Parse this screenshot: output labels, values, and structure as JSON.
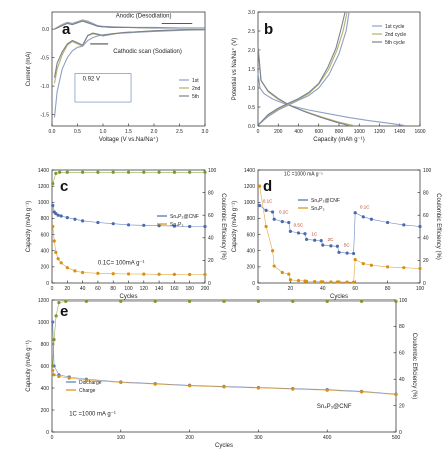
{
  "chart_data": [
    {
      "panel": "a",
      "type": "line",
      "xlabel": "Voltage (V vs.Na/Na⁺)",
      "ylabel": "Current (mA)",
      "xlim": [
        0.0,
        3.0
      ],
      "ylim": [
        -1.7,
        0.3
      ],
      "xticks": [
        "0.0",
        "0.5",
        "1.0",
        "1.5",
        "2.0",
        "2.5",
        "3.0"
      ],
      "yticks": [
        "0.0",
        "-0.5",
        "-1.0",
        "-1.5"
      ],
      "annotations": [
        "Anodic (Desodiation)",
        "Cathodic scan (Sodiation)",
        "0.92 V"
      ],
      "series": [
        {
          "name": "1st",
          "color": "#8f9fc4",
          "x": [
            0.05,
            0.1,
            0.2,
            0.3,
            0.4,
            0.5,
            0.6,
            0.7,
            0.8,
            0.9,
            1.0,
            1.2,
            1.4,
            1.6,
            1.8,
            2.0,
            2.3,
            2.6,
            3.0
          ],
          "y": [
            -1.55,
            -1.1,
            -0.7,
            -0.5,
            -0.38,
            -0.32,
            -0.3,
            -0.2,
            -0.15,
            -0.12,
            -0.1,
            -0.08,
            -0.07,
            -0.06,
            -0.05,
            -0.04,
            -0.03,
            -0.02,
            -0.01
          ]
        },
        {
          "name": "2nd",
          "color": "#b8b06a",
          "x": [
            0.05,
            0.1,
            0.2,
            0.3,
            0.4,
            0.5,
            0.6,
            0.7,
            0.8,
            0.9,
            1.0,
            1.2,
            1.4,
            1.6,
            1.8,
            2.0,
            2.3,
            2.6,
            3.0
          ],
          "y": [
            -0.95,
            -0.7,
            -0.45,
            -0.28,
            -0.22,
            -0.26,
            -0.3,
            -0.12,
            -0.08,
            -0.1,
            -0.12,
            -0.09,
            -0.06,
            -0.05,
            -0.04,
            -0.03,
            -0.02,
            -0.01,
            -0.01
          ]
        },
        {
          "name": "5th",
          "color": "#7a8290",
          "x": [
            0.05,
            0.1,
            0.2,
            0.3,
            0.4,
            0.5,
            0.6,
            0.7,
            0.8,
            0.9,
            1.0,
            1.2,
            1.4,
            1.6,
            1.8,
            2.0,
            2.3,
            2.6,
            3.0
          ],
          "y": [
            -0.85,
            -0.6,
            -0.4,
            -0.26,
            -0.2,
            -0.24,
            -0.28,
            -0.11,
            -0.07,
            -0.09,
            -0.11,
            -0.08,
            -0.06,
            -0.05,
            -0.04,
            -0.03,
            -0.02,
            -0.01,
            -0.01
          ]
        },
        {
          "name": "1st",
          "color": "#8f9fc4",
          "x": [
            3.0,
            2.5,
            2.0,
            1.5,
            1.2,
            1.0,
            0.9,
            0.8,
            0.7,
            0.6,
            0.5,
            0.4,
            0.3,
            0.2,
            0.1,
            0.05
          ],
          "y": [
            0.02,
            0.02,
            0.03,
            0.03,
            0.04,
            0.05,
            0.06,
            0.1,
            0.14,
            0.16,
            0.13,
            0.1,
            0.12,
            0.08,
            0.03,
            0.0
          ]
        },
        {
          "name": "2nd",
          "color": "#b8b06a",
          "x": [
            3.0,
            2.5,
            2.0,
            1.5,
            1.2,
            1.0,
            0.9,
            0.8,
            0.7,
            0.6,
            0.5,
            0.4,
            0.3,
            0.2,
            0.1,
            0.05
          ],
          "y": [
            0.02,
            0.02,
            0.02,
            0.03,
            0.03,
            0.04,
            0.05,
            0.08,
            0.12,
            0.15,
            0.12,
            0.09,
            0.11,
            0.07,
            0.02,
            0.0
          ]
        },
        {
          "name": "5th",
          "color": "#7a8290",
          "x": [
            3.0,
            2.5,
            2.0,
            1.5,
            1.2,
            1.0,
            0.9,
            0.8,
            0.7,
            0.6,
            0.5,
            0.4,
            0.3,
            0.2,
            0.1,
            0.05
          ],
          "y": [
            0.02,
            0.02,
            0.02,
            0.03,
            0.03,
            0.04,
            0.05,
            0.08,
            0.11,
            0.14,
            0.11,
            0.08,
            0.1,
            0.06,
            0.02,
            0.0
          ]
        }
      ]
    },
    {
      "panel": "b",
      "type": "line",
      "xlabel": "Capacity (mAh g⁻¹)",
      "ylabel": "Potential vs Na/Na⁺ (V)",
      "xlim": [
        0,
        1600
      ],
      "ylim": [
        0.0,
        3.0
      ],
      "xticks": [
        "0",
        "200",
        "400",
        "600",
        "800",
        "1000",
        "1200",
        "1400",
        "1600"
      ],
      "yticks": [
        "0.0",
        "0.5",
        "1.0",
        "1.5",
        "2.0",
        "2.5",
        "3.0"
      ],
      "series": [
        {
          "name": "1st cycle",
          "color": "#8f9fc4",
          "x": [
            0,
            20,
            60,
            150,
            300,
            500,
            700,
            900,
            1100,
            1300,
            1450
          ],
          "y": [
            1.4,
            1.0,
            0.85,
            0.7,
            0.55,
            0.42,
            0.32,
            0.22,
            0.14,
            0.07,
            0.01
          ]
        },
        {
          "name": "2nd cycle",
          "color": "#b8b06a",
          "x": [
            0,
            30,
            100,
            200,
            350,
            500,
            650,
            800,
            950
          ],
          "y": [
            2.1,
            1.2,
            0.9,
            0.7,
            0.5,
            0.35,
            0.22,
            0.1,
            0.01
          ]
        },
        {
          "name": "5th cycle",
          "color": "#7a8290",
          "x": [
            0,
            30,
            100,
            200,
            330,
            480,
            620,
            760,
            900
          ],
          "y": [
            2.1,
            1.2,
            0.92,
            0.72,
            0.52,
            0.36,
            0.23,
            0.11,
            0.01
          ]
        },
        {
          "name": "1st cycle",
          "color": "#8f9fc4",
          "x": [
            0,
            100,
            200,
            300,
            400,
            500,
            600,
            700,
            800,
            870,
            900
          ],
          "y": [
            0.02,
            0.25,
            0.42,
            0.55,
            0.68,
            0.8,
            1.0,
            1.35,
            1.9,
            2.5,
            3.0
          ]
        },
        {
          "name": "2nd cycle",
          "color": "#b8b06a",
          "x": [
            0,
            100,
            200,
            300,
            400,
            500,
            600,
            700,
            780,
            840,
            880
          ],
          "y": [
            0.02,
            0.28,
            0.45,
            0.58,
            0.7,
            0.85,
            1.1,
            1.5,
            2.0,
            2.5,
            3.0
          ]
        },
        {
          "name": "5th cycle",
          "color": "#7a8290",
          "x": [
            0,
            100,
            200,
            300,
            400,
            500,
            600,
            690,
            770,
            820,
            860
          ],
          "y": [
            0.02,
            0.3,
            0.47,
            0.6,
            0.72,
            0.88,
            1.12,
            1.55,
            2.05,
            2.55,
            3.0
          ]
        }
      ]
    },
    {
      "panel": "c",
      "type": "scatter",
      "xlabel": "Cycles",
      "ylabel": "Capacity (mAh g⁻¹)",
      "y2label": "Coulombic Efficiency (%)",
      "xlim": [
        0,
        200
      ],
      "ylim": [
        0,
        1400
      ],
      "y2lim": [
        0,
        100
      ],
      "xticks": [
        "0",
        "20",
        "40",
        "60",
        "80",
        "100",
        "120",
        "140",
        "160",
        "180",
        "200"
      ],
      "yticks": [
        "0",
        "200",
        "400",
        "600",
        "800",
        "1000",
        "1200",
        "1400"
      ],
      "y2ticks": [
        "0",
        "20",
        "40",
        "60",
        "80",
        "100"
      ],
      "annotations": [
        "0.1C= 100mA g⁻¹"
      ],
      "series": [
        {
          "name": "Sn₄P₃@CNF",
          "color": "#4a6ab0",
          "x": [
            1,
            3,
            5,
            8,
            12,
            20,
            30,
            40,
            60,
            80,
            100,
            120,
            140,
            160,
            180,
            200
          ],
          "y": [
            960,
            880,
            860,
            840,
            830,
            810,
            790,
            770,
            750,
            735,
            720,
            715,
            710,
            705,
            700,
            700
          ]
        },
        {
          "name": "Sn₄P₃",
          "color": "#d8900e",
          "x": [
            1,
            3,
            5,
            8,
            12,
            20,
            30,
            40,
            60,
            80,
            100,
            120,
            140,
            160,
            180,
            200
          ],
          "y": [
            700,
            520,
            380,
            300,
            250,
            190,
            150,
            130,
            120,
            115,
            112,
            110,
            108,
            107,
            105,
            105
          ]
        },
        {
          "name": "Coulombic Efficiency",
          "axis": "y2",
          "color": "#7a9a2a",
          "x": [
            1,
            5,
            10,
            20,
            40,
            60,
            80,
            100,
            120,
            140,
            160,
            180,
            200
          ],
          "y": [
            88,
            97,
            98,
            98,
            98,
            98,
            98,
            98,
            98,
            98,
            98,
            98,
            98
          ]
        }
      ]
    },
    {
      "panel": "d",
      "type": "scatter",
      "xlabel": "Cycles",
      "ylabel": "Capacity (mAh g⁻¹)",
      "y2label": "Coulombic Efficiency (%)",
      "xlim": [
        0,
        100
      ],
      "ylim": [
        0,
        1400
      ],
      "y2lim": [
        0,
        100
      ],
      "xticks": [
        "0",
        "20",
        "40",
        "60",
        "80",
        "100"
      ],
      "yticks": [
        "0",
        "200",
        "400",
        "600",
        "800",
        "1000",
        "1200",
        "1400"
      ],
      "y2ticks": [
        "0",
        "20",
        "40",
        "60",
        "80",
        "100"
      ],
      "annotations": [
        "1C =1000 mA g⁻¹",
        "0.1C",
        "0.2C",
        "0.5C",
        "1C",
        "2C",
        "5C",
        "0.1C"
      ],
      "series": [
        {
          "name": "Sn₄P₃@CNF",
          "color": "#4a6ab0",
          "x": [
            1,
            5,
            9,
            10,
            15,
            19,
            20,
            25,
            29,
            30,
            35,
            39,
            40,
            45,
            49,
            50,
            55,
            59,
            60,
            65,
            70,
            80,
            90,
            100
          ],
          "y": [
            960,
            900,
            880,
            790,
            760,
            750,
            640,
            620,
            610,
            540,
            530,
            525,
            470,
            460,
            455,
            380,
            370,
            365,
            870,
            820,
            790,
            750,
            720,
            700
          ]
        },
        {
          "name": "Sn₄P₃",
          "color": "#d8900e",
          "x": [
            1,
            5,
            9,
            10,
            15,
            19,
            20,
            25,
            29,
            30,
            35,
            39,
            40,
            45,
            49,
            50,
            55,
            59,
            60,
            65,
            70,
            80,
            90,
            100
          ],
          "y": [
            1200,
            700,
            400,
            210,
            130,
            110,
            40,
            30,
            25,
            20,
            18,
            15,
            14,
            13,
            12,
            12,
            11,
            10,
            290,
            240,
            220,
            200,
            190,
            180
          ]
        }
      ]
    },
    {
      "panel": "e",
      "type": "scatter",
      "xlabel": "Cycles",
      "ylabel": "Capacity (mAh g⁻¹)",
      "y2label": "Coulombic Efficiency (%)",
      "xlim": [
        0,
        500
      ],
      "ylim": [
        0,
        1200
      ],
      "y2lim": [
        0,
        100
      ],
      "xticks": [
        "0",
        "100",
        "200",
        "300",
        "400",
        "500"
      ],
      "yticks": [
        "0",
        "200",
        "400",
        "600",
        "800",
        "1000",
        "1200"
      ],
      "y2ticks": [
        "0",
        "20",
        "40",
        "60",
        "80",
        "100"
      ],
      "annotations": [
        "1C =1000 mA g⁻¹",
        "Sn₄P₃@CNF"
      ],
      "series": [
        {
          "name": "Discharge",
          "color": "#5a78b8",
          "x": [
            1,
            3,
            10,
            25,
            50,
            100,
            150,
            200,
            250,
            300,
            350,
            400,
            450,
            500
          ],
          "y": [
            1000,
            600,
            520,
            500,
            480,
            455,
            440,
            425,
            415,
            405,
            395,
            385,
            370,
            345
          ]
        },
        {
          "name": "Charge",
          "color": "#d8900e",
          "x": [
            1,
            3,
            10,
            25,
            50,
            100,
            150,
            200,
            250,
            300,
            350,
            400,
            450,
            500
          ],
          "y": [
            560,
            520,
            505,
            490,
            472,
            450,
            435,
            420,
            410,
            400,
            390,
            380,
            365,
            340
          ]
        },
        {
          "name": "Coulombic Efficiency",
          "axis": "y2",
          "color": "#7a9a2a",
          "x": [
            1,
            3,
            6,
            10,
            20,
            50,
            100,
            150,
            200,
            250,
            300,
            350,
            400,
            450,
            500
          ],
          "y": [
            50,
            70,
            88,
            98,
            99,
            99,
            99,
            99,
            99,
            99,
            99,
            99,
            99,
            99,
            99
          ]
        }
      ]
    }
  ]
}
